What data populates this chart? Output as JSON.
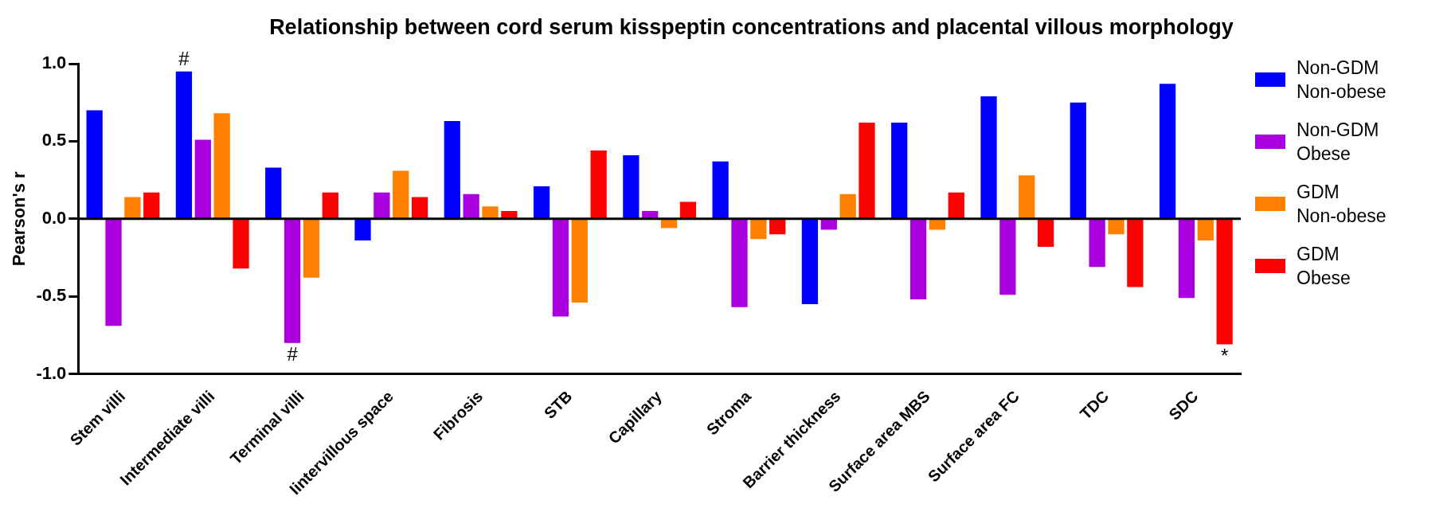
{
  "chart_data": {
    "type": "bar",
    "title": "Relationship between cord serum kisspeptin concentrations and placental villous morphology",
    "ylabel": "Pearson's r",
    "categories": [
      "Stem villi",
      "Intermediate villi",
      "Terminal villi",
      "Iintervillous space",
      "Fibrosis",
      "STB",
      "Capillary",
      "Stroma",
      "Barrier thickness",
      "Surface area MBS",
      "Surface area FC",
      "TDC",
      "SDC"
    ],
    "series": [
      {
        "name": "Non-GDM Non-obese",
        "color": "#0000ff",
        "values": [
          0.7,
          0.95,
          0.33,
          -0.14,
          0.63,
          0.21,
          0.41,
          0.37,
          -0.55,
          0.62,
          0.79,
          0.75,
          0.87
        ],
        "value_labels": [
          null,
          "#",
          null,
          null,
          null,
          null,
          null,
          null,
          null,
          null,
          null,
          null,
          null
        ]
      },
      {
        "name": "Non-GDM Obese",
        "color": "#aa00e0",
        "values": [
          -0.69,
          0.51,
          -0.8,
          0.17,
          0.16,
          -0.63,
          0.05,
          -0.57,
          -0.07,
          -0.52,
          -0.49,
          -0.31,
          -0.51
        ],
        "value_labels": [
          null,
          null,
          "#",
          null,
          null,
          null,
          null,
          null,
          null,
          null,
          null,
          null,
          null
        ]
      },
      {
        "name": "GDM Non-obese",
        "color": "#ff8000",
        "values": [
          0.14,
          0.68,
          -0.38,
          0.31,
          0.08,
          -0.54,
          -0.06,
          -0.13,
          0.16,
          -0.07,
          0.28,
          -0.1,
          -0.14
        ]
      },
      {
        "name": "GDM Obese",
        "color": "#ff0000",
        "values": [
          0.17,
          -0.32,
          0.17,
          0.14,
          0.05,
          0.44,
          0.11,
          -0.1,
          0.62,
          0.17,
          -0.18,
          -0.44,
          -0.81
        ],
        "value_labels": [
          null,
          null,
          null,
          null,
          null,
          null,
          null,
          null,
          null,
          null,
          null,
          null,
          "*"
        ]
      }
    ],
    "ylim": [
      -1,
      1
    ],
    "yticks": [
      {
        "value": -1,
        "label": "-1.0"
      },
      {
        "value": -0.5,
        "label": "-0.5"
      },
      {
        "value": 0,
        "label": "0.0"
      },
      {
        "value": 0.5,
        "label": "0.5"
      },
      {
        "value": 1,
        "label": "1.0"
      }
    ],
    "ref_lines": [
      {
        "axis": "y",
        "value": 0,
        "label": null,
        "color": "#000000"
      }
    ],
    "grid": false,
    "legend": "right"
  }
}
